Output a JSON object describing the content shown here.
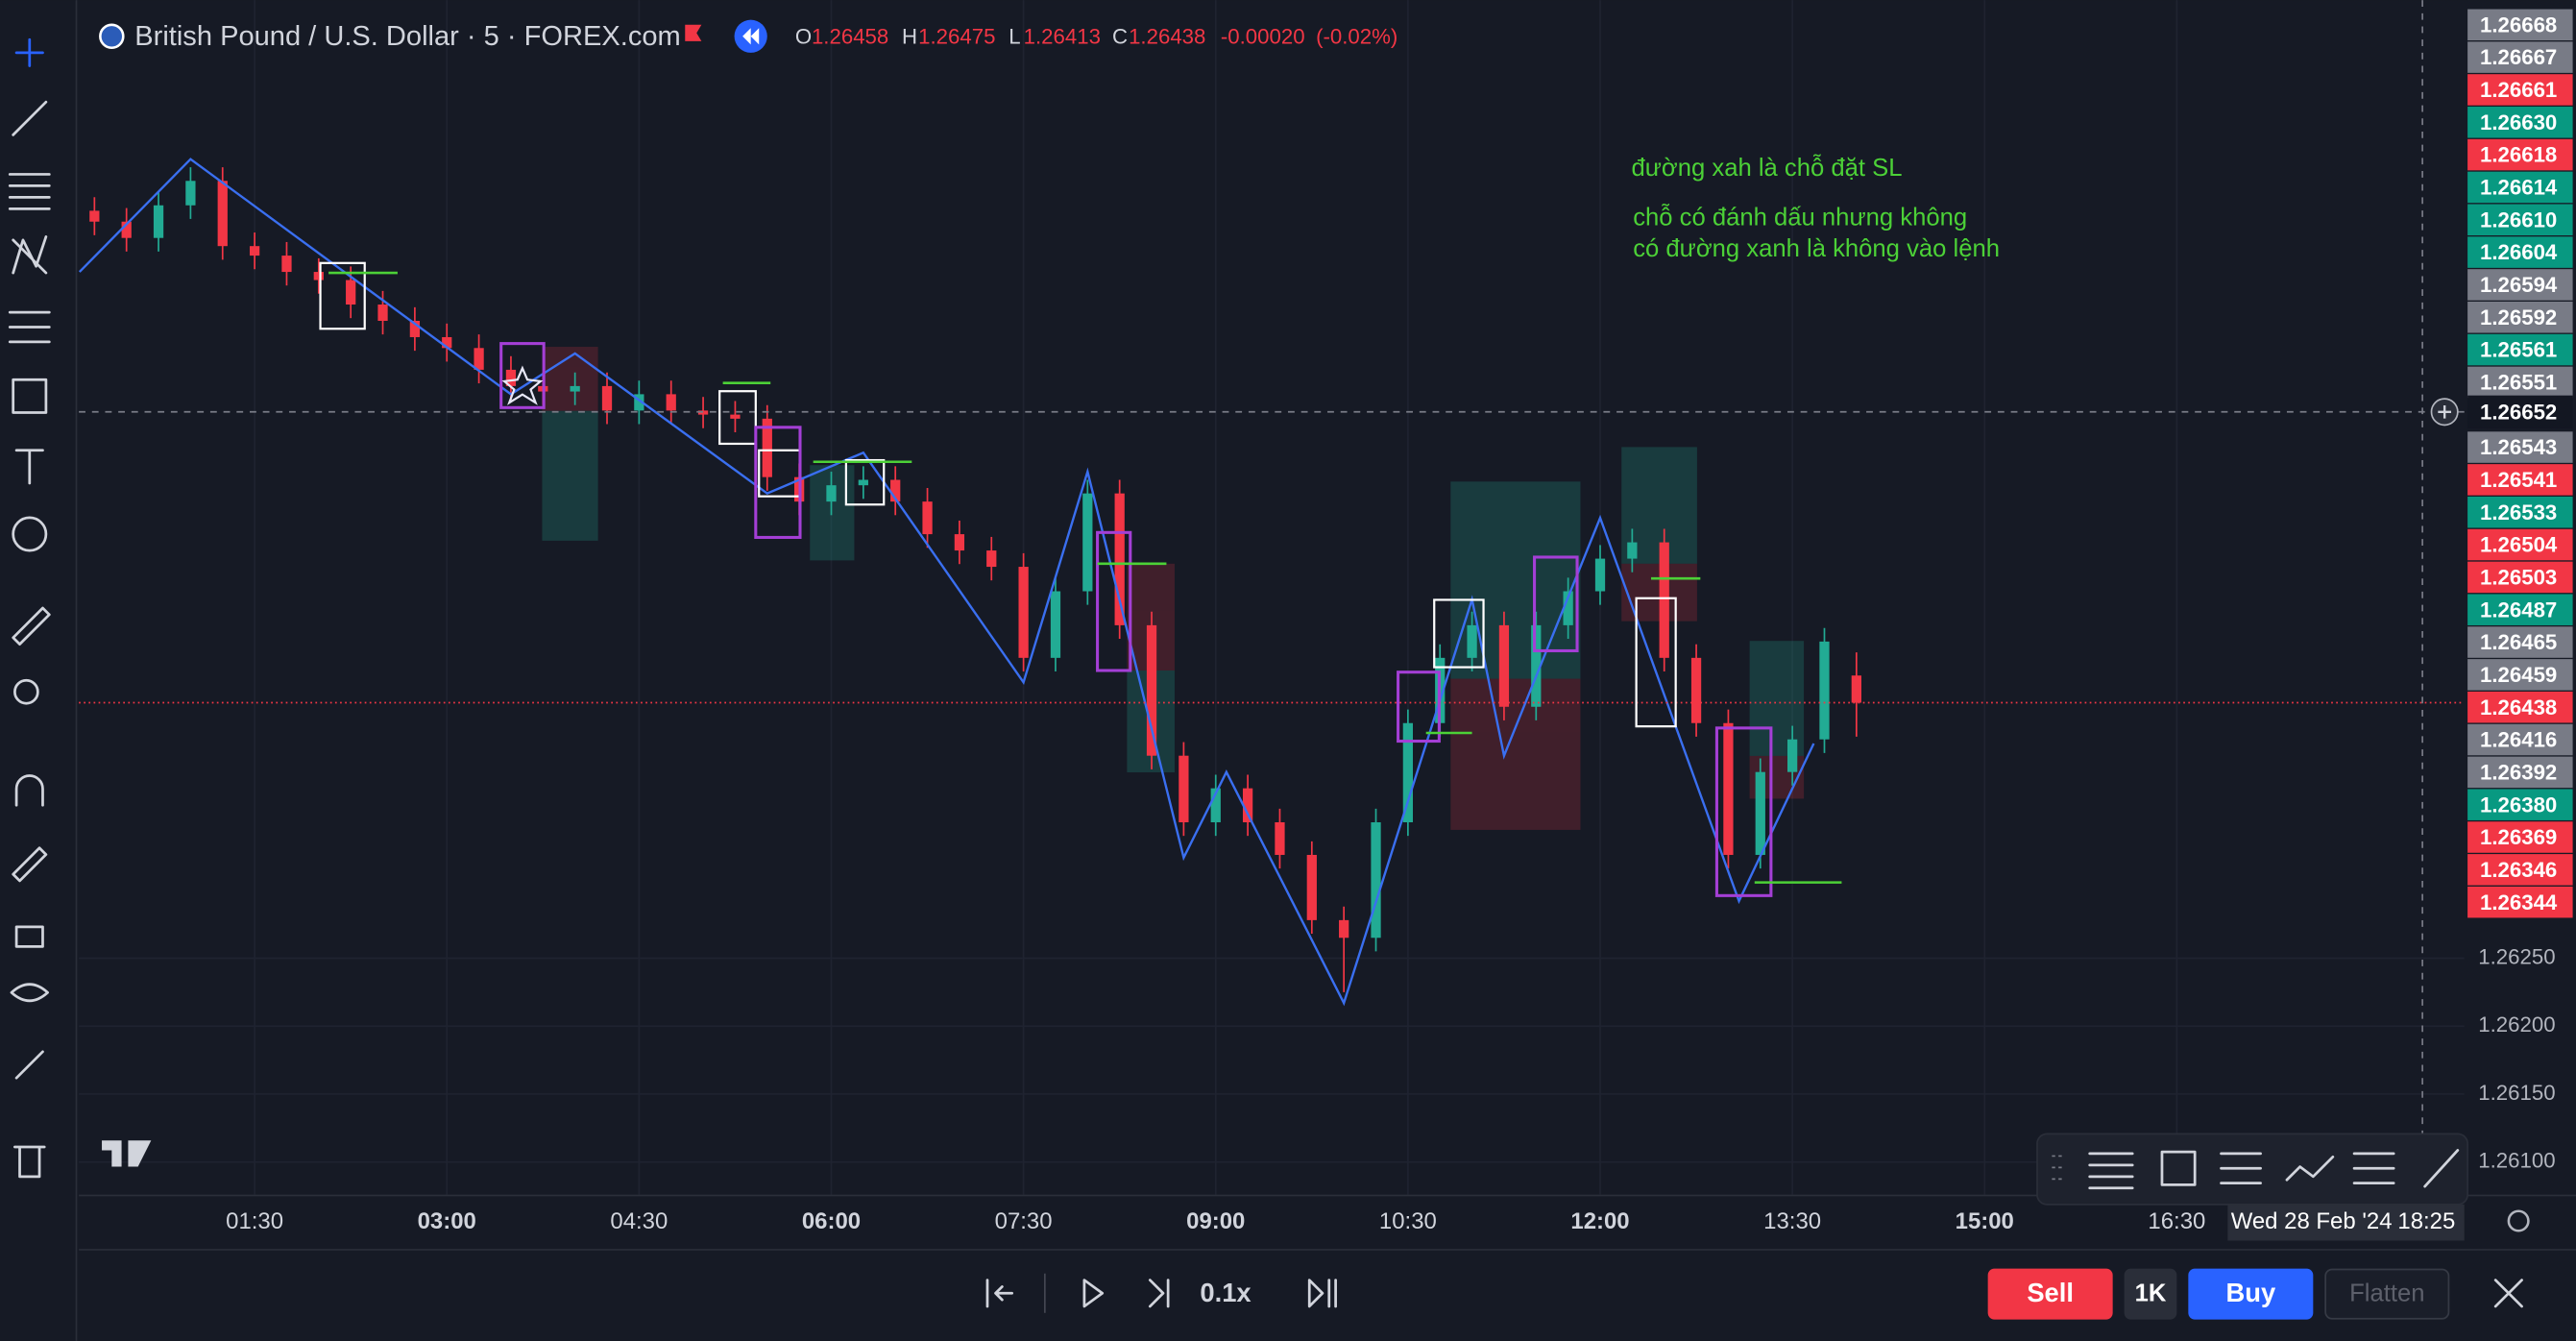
{
  "header": {
    "title": "British Pound / U.S. Dollar · 5 · FOREX.com",
    "ohlc": [
      {
        "key": "O",
        "value": 1.26458
      },
      {
        "key": "H",
        "value": 1.26475
      },
      {
        "key": "L",
        "value": 1.26413
      },
      {
        "key": "C",
        "value": 1.26438
      }
    ],
    "change": {
      "value": -0.0002,
      "label": "-0.00020"
    },
    "change_percent": {
      "value": -0.02,
      "label": "(-0.02%)"
    }
  },
  "annotations": [
    "đường xah là chỗ đặt SL",
    "chỗ có đánh dấu nhưng không",
    "có đường xanh là không vào lệnh"
  ],
  "replay": {
    "speed": "0.1x"
  },
  "trading_panel": {
    "sell": "Sell",
    "quantity": "1K",
    "buy": "Buy",
    "flatten": "Flatten"
  },
  "chart_data": {
    "type": "candlestick",
    "up_color": "#22ab94",
    "down_color": "#f23645",
    "grid": true,
    "xlim": [
      7.7,
      1124.6
    ],
    "ylim": [
      1.26076,
      1.26955
    ],
    "xticks": [
      {
        "value": 90,
        "label": "01:30"
      },
      {
        "value": 180,
        "label": "03:00"
      },
      {
        "value": 270,
        "label": "04:30"
      },
      {
        "value": 360,
        "label": "06:00"
      },
      {
        "value": 450,
        "label": "07:30"
      },
      {
        "value": 540,
        "label": "09:00"
      },
      {
        "value": 630,
        "label": "10:30"
      },
      {
        "value": 720,
        "label": "12:00"
      },
      {
        "value": 810,
        "label": "13:30"
      },
      {
        "value": 900,
        "label": "15:00"
      },
      {
        "value": 990,
        "label": "16:30"
      }
    ],
    "yticks": [
      {
        "value": 1.2625,
        "label": "1.26250"
      },
      {
        "value": 1.262,
        "label": "1.26200"
      },
      {
        "value": 1.2615,
        "label": "1.26150"
      },
      {
        "value": 1.261,
        "label": "1.26100"
      }
    ],
    "x": [
      15,
      30,
      45,
      60,
      75,
      90,
      105,
      120,
      135,
      150,
      165,
      180,
      195,
      210,
      225,
      240,
      255,
      270,
      285,
      300,
      315,
      330,
      345,
      360,
      375,
      390,
      405,
      420,
      435,
      450,
      465,
      480,
      495,
      510,
      525,
      540,
      555,
      570,
      585,
      600,
      615,
      630,
      645,
      660,
      675,
      690,
      705,
      720,
      735,
      750,
      765,
      780,
      795,
      810,
      825,
      840
    ],
    "open": [
      1.268,
      1.26792,
      1.2678,
      1.26804,
      1.26822,
      1.26774,
      1.26767,
      1.26755,
      1.26749,
      1.26731,
      1.26719,
      1.26707,
      1.26699,
      1.26683,
      1.26671,
      1.26667,
      1.26671,
      1.26653,
      1.26665,
      1.26653,
      1.2665,
      1.26647,
      1.26604,
      1.26586,
      1.26598,
      1.26602,
      1.26586,
      1.26562,
      1.2655,
      1.26538,
      1.26471,
      1.2652,
      1.26592,
      1.26495,
      1.26399,
      1.2635,
      1.26375,
      1.2635,
      1.26326,
      1.26278,
      1.26265,
      1.2635,
      1.26423,
      1.26471,
      1.26495,
      1.26435,
      1.26495,
      1.2652,
      1.26544,
      1.26556,
      1.26471,
      1.26423,
      1.26326,
      1.26387,
      1.26411,
      1.26458
    ],
    "high": [
      1.2681,
      1.26802,
      1.26814,
      1.26832,
      1.26832,
      1.26784,
      1.26777,
      1.26765,
      1.26759,
      1.26741,
      1.26729,
      1.26717,
      1.26709,
      1.26693,
      1.26681,
      1.26681,
      1.26681,
      1.26675,
      1.26675,
      1.26663,
      1.2666,
      1.26657,
      1.26614,
      1.26608,
      1.26612,
      1.26612,
      1.26596,
      1.26572,
      1.2656,
      1.26548,
      1.2653,
      1.26602,
      1.26602,
      1.26505,
      1.26409,
      1.26385,
      1.26385,
      1.2636,
      1.26336,
      1.26288,
      1.2636,
      1.26433,
      1.26481,
      1.26505,
      1.26505,
      1.26505,
      1.2653,
      1.26554,
      1.26566,
      1.26566,
      1.26481,
      1.26433,
      1.26397,
      1.26421,
      1.26493,
      1.26475
    ],
    "low": [
      1.26782,
      1.2677,
      1.2677,
      1.26794,
      1.26764,
      1.26757,
      1.26745,
      1.26739,
      1.26721,
      1.26709,
      1.26697,
      1.26689,
      1.26673,
      1.26661,
      1.26657,
      1.26657,
      1.26643,
      1.26643,
      1.26643,
      1.2664,
      1.26637,
      1.26594,
      1.26576,
      1.26576,
      1.26588,
      1.26576,
      1.26552,
      1.2654,
      1.26528,
      1.26461,
      1.26461,
      1.2651,
      1.26485,
      1.26389,
      1.2634,
      1.2634,
      1.2634,
      1.26316,
      1.26268,
      1.26225,
      1.26255,
      1.2634,
      1.26413,
      1.26461,
      1.26425,
      1.26425,
      1.26485,
      1.2651,
      1.26534,
      1.26461,
      1.26413,
      1.26316,
      1.26316,
      1.26377,
      1.26401,
      1.26413
    ],
    "close": [
      1.26792,
      1.2678,
      1.26804,
      1.26822,
      1.26774,
      1.26767,
      1.26755,
      1.26749,
      1.26731,
      1.26719,
      1.26707,
      1.26699,
      1.26683,
      1.26671,
      1.26667,
      1.26671,
      1.26653,
      1.26665,
      1.26653,
      1.2665,
      1.26647,
      1.26604,
      1.26586,
      1.26598,
      1.26602,
      1.26586,
      1.26562,
      1.2655,
      1.26538,
      1.26471,
      1.2652,
      1.26592,
      1.26495,
      1.26399,
      1.2635,
      1.26375,
      1.2635,
      1.26326,
      1.26278,
      1.26265,
      1.2635,
      1.26423,
      1.26471,
      1.26495,
      1.26435,
      1.26495,
      1.2652,
      1.26544,
      1.26556,
      1.26471,
      1.26423,
      1.26326,
      1.26387,
      1.26411,
      1.26483,
      1.26438
    ],
    "zigzag": {
      "color": "#3a6ff0",
      "x": [
        8,
        60,
        210,
        240,
        330,
        375,
        450,
        480,
        525,
        545,
        600,
        660,
        675,
        720,
        785,
        820
      ],
      "values": [
        1.26755,
        1.26838,
        1.26665,
        1.26695,
        1.26592,
        1.26622,
        1.26453,
        1.26608,
        1.26324,
        1.26387,
        1.26217,
        1.26514,
        1.26399,
        1.26574,
        1.26292,
        1.26408
      ]
    },
    "price_tags": [
      {
        "value": 1.26668,
        "label": "1.26668",
        "color": "#787b86"
      },
      {
        "value": 1.26667,
        "label": "1.26667",
        "color": "#787b86"
      },
      {
        "value": 1.26661,
        "label": "1.26661",
        "color": "#f23645"
      },
      {
        "value": 1.2663,
        "label": "1.26630",
        "color": "#089981"
      },
      {
        "value": 1.26618,
        "label": "1.26618",
        "color": "#f23645"
      },
      {
        "value": 1.26614,
        "label": "1.26614",
        "color": "#089981"
      },
      {
        "value": 1.2661,
        "label": "1.26610",
        "color": "#089981"
      },
      {
        "value": 1.26604,
        "label": "1.26604",
        "color": "#089981"
      },
      {
        "value": 1.26594,
        "label": "1.26594",
        "color": "#787b86"
      },
      {
        "value": 1.26592,
        "label": "1.26592",
        "color": "#787b86"
      },
      {
        "value": 1.26561,
        "label": "1.26561",
        "color": "#089981"
      },
      {
        "value": 1.26551,
        "label": "1.26551",
        "color": "#787b86"
      },
      {
        "value": 1.26543,
        "label": "1.26543",
        "color": "#787b86"
      },
      {
        "value": 1.26541,
        "label": "1.26541",
        "color": "#f23645"
      },
      {
        "value": 1.26533,
        "label": "1.26533",
        "color": "#089981"
      },
      {
        "value": 1.26504,
        "label": "1.26504",
        "color": "#f23645"
      },
      {
        "value": 1.26503,
        "label": "1.26503",
        "color": "#f23645"
      },
      {
        "value": 1.26487,
        "label": "1.26487",
        "color": "#089981"
      },
      {
        "value": 1.26465,
        "label": "1.26465",
        "color": "#787b86"
      },
      {
        "value": 1.26459,
        "label": "1.26459",
        "color": "#787b86"
      },
      {
        "value": 1.26438,
        "label": "1.26438",
        "color": "#f23645"
      },
      {
        "value": 1.26416,
        "label": "1.26416",
        "color": "#787b86"
      },
      {
        "value": 1.26392,
        "label": "1.26392",
        "color": "#787b86"
      },
      {
        "value": 1.2638,
        "label": "1.26380",
        "color": "#089981"
      },
      {
        "value": 1.26369,
        "label": "1.26369",
        "color": "#f23645"
      },
      {
        "value": 1.26346,
        "label": "1.26346",
        "color": "#f23645"
      },
      {
        "value": 1.26344,
        "label": "1.26344",
        "color": "#f23645"
      }
    ],
    "crosshair": {
      "value": 1.26652,
      "label": "1.26652",
      "time": 1105,
      "time_label": "18:25",
      "date_label": "Wed 28 Feb '24"
    }
  }
}
